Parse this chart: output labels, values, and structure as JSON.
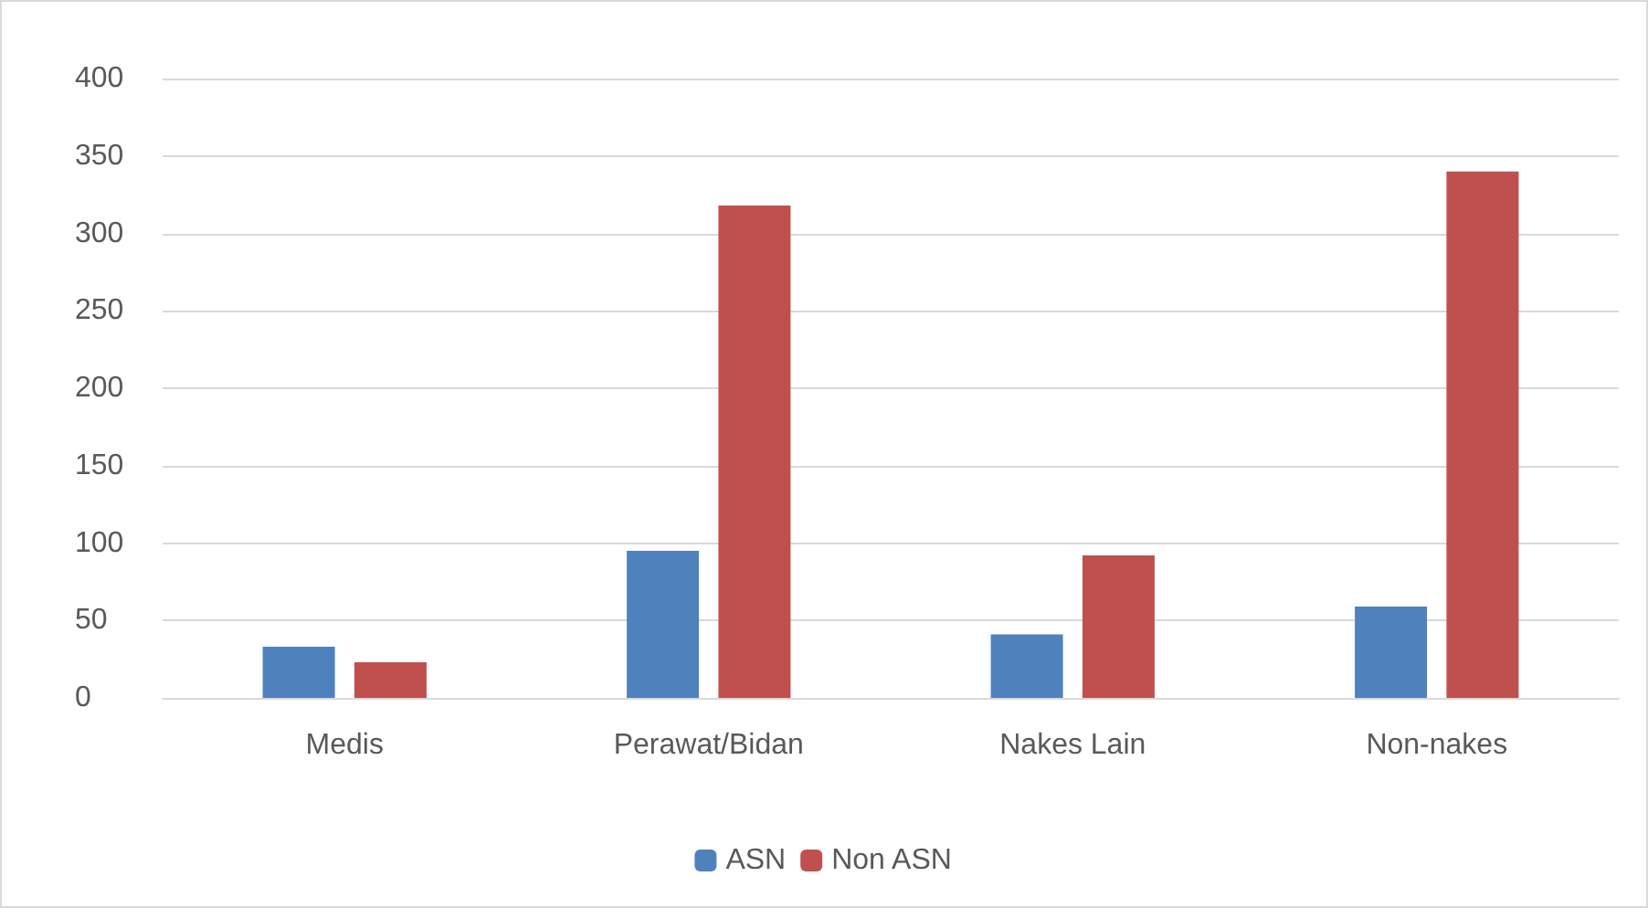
{
  "chart_data": {
    "type": "bar",
    "categories": [
      "Medis",
      "Perawat/Bidan",
      "Nakes Lain",
      "Non-nakes"
    ],
    "series": [
      {
        "name": "ASN",
        "color": "#4f81bd",
        "values": [
          33,
          95,
          41,
          59
        ]
      },
      {
        "name": "Non ASN",
        "color": "#c0504d",
        "values": [
          23,
          318,
          92,
          340
        ]
      }
    ],
    "ylim": [
      0,
      400
    ],
    "yticks": [
      0,
      50,
      100,
      150,
      200,
      250,
      300,
      350,
      400
    ],
    "grid": "y",
    "legend": "bottom"
  }
}
